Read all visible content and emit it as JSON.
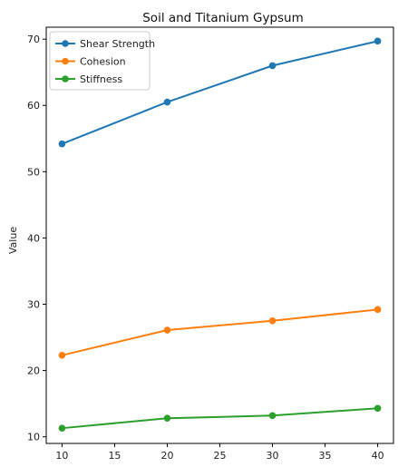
{
  "chart_data": {
    "type": "line",
    "title": "Soil and Titanium Gypsum",
    "xlabel": "",
    "ylabel": "Value",
    "x": [
      10,
      20,
      30,
      40
    ],
    "xlim": [
      8.5,
      41.5
    ],
    "ylim": [
      9.0,
      71.8
    ],
    "xticks": [
      10,
      15,
      20,
      25,
      30,
      35,
      40
    ],
    "yticks": [
      10,
      20,
      30,
      40,
      50,
      60,
      70
    ],
    "grid": false,
    "legend_position": "top-left",
    "series": [
      {
        "name": "Shear Strength",
        "color": "#1f77b4",
        "values": [
          54.2,
          60.5,
          66.0,
          69.7
        ]
      },
      {
        "name": "Cohesion",
        "color": "#ff7f0e",
        "values": [
          22.3,
          26.1,
          27.5,
          29.2
        ]
      },
      {
        "name": "Stiffness",
        "color": "#2ca02c",
        "values": [
          11.3,
          12.8,
          13.2,
          14.3
        ]
      }
    ]
  }
}
